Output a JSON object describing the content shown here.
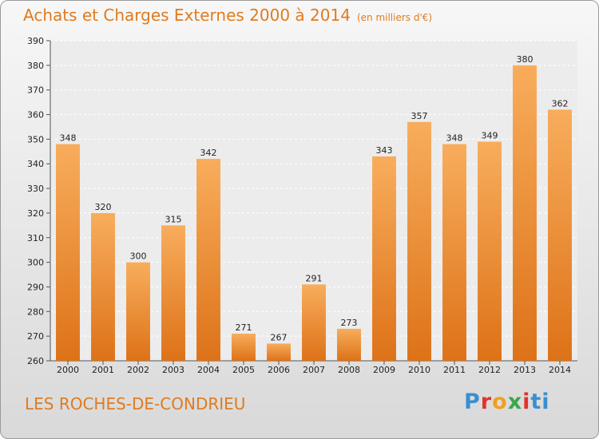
{
  "header": {
    "title": "Achats et Charges Externes 2000 à 2014",
    "subtitle": "(en milliers d'€)"
  },
  "footer": {
    "commune": "LES ROCHES-DE-CONDRIEU",
    "logo_letters": [
      "P",
      "r",
      "o",
      "x",
      "i",
      "ti"
    ]
  },
  "colors": {
    "accent": "#e07b1f",
    "bar_top": "#f8ad5c",
    "bar_bottom": "#dd7218"
  },
  "chart_data": {
    "type": "bar",
    "title": "Achats et Charges Externes 2000 à 2014",
    "subtitle": "(en milliers d'€)",
    "categories": [
      "2000",
      "2001",
      "2002",
      "2003",
      "2004",
      "2005",
      "2006",
      "2007",
      "2008",
      "2009",
      "2010",
      "2011",
      "2012",
      "2013",
      "2014"
    ],
    "values": [
      348,
      320,
      300,
      315,
      342,
      271,
      267,
      291,
      273,
      343,
      357,
      348,
      349,
      380,
      362
    ],
    "ylim": [
      260,
      390
    ],
    "yticks": [
      260,
      270,
      280,
      290,
      300,
      310,
      320,
      330,
      340,
      350,
      360,
      370,
      380,
      390
    ],
    "grid": true,
    "legend": "none"
  }
}
